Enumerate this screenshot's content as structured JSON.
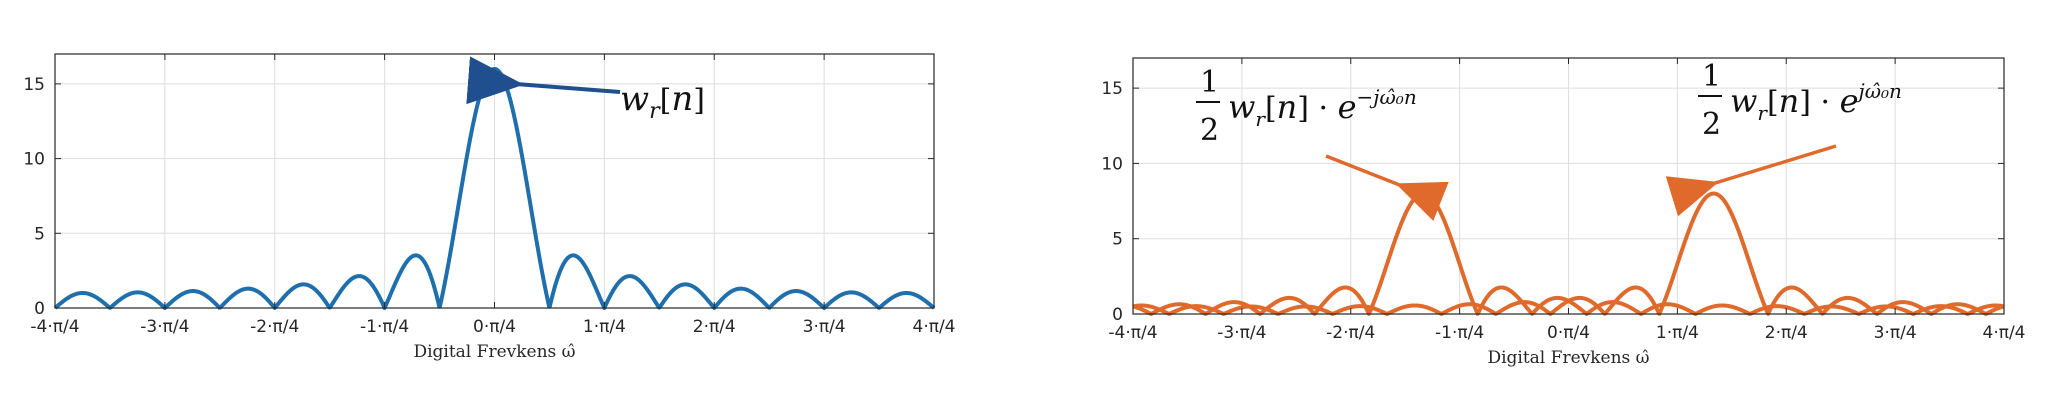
{
  "chart_data": [
    {
      "type": "line",
      "xlabel": "Digital Frevkens ω̂",
      "xlim": [
        -3.1416,
        3.1416
      ],
      "ylim": [
        0,
        17
      ],
      "grid": true,
      "x_tick_labels": [
        "-4·π/4",
        "-3·π/4",
        "-2·π/4",
        "-1·π/4",
        "0·π/4",
        "1·π/4",
        "2·π/4",
        "3·π/4",
        "4·π/4"
      ],
      "y_ticks": [
        0,
        5,
        10,
        15
      ],
      "series": [
        {
          "color": "#1f6fad",
          "window_length": 16,
          "center": 0,
          "peak": 16
        }
      ],
      "annotation": {
        "text": "w_r[n]",
        "x": 0.12,
        "y": 15.5
      }
    },
    {
      "type": "line",
      "xlabel": "Digital Frevkens ω̂",
      "xlim": [
        -3.1416,
        3.1416
      ],
      "ylim": [
        0,
        17
      ],
      "grid": true,
      "x_tick_labels": [
        "-4·π/4",
        "-3·π/4",
        "-2·π/4",
        "-1·π/4",
        "0·π/4",
        "1·π/4",
        "2·π/4",
        "3·π/4",
        "4·π/4"
      ],
      "y_ticks": [
        0,
        5,
        10,
        15
      ],
      "series": [
        {
          "color": "#e06a2c",
          "window_length": 16,
          "center": -1.0472,
          "peak": 8
        },
        {
          "color": "#e06a2c",
          "window_length": 16,
          "center": 1.0472,
          "peak": 8
        }
      ],
      "annotations": [
        {
          "text": "½·w_r[n]·e^{-jω̂₀n}",
          "x": -1.0472,
          "y": 8
        },
        {
          "text": "½·w_r[n]·e^{jω̂₀n}",
          "x": 1.0472,
          "y": 8
        }
      ]
    }
  ]
}
